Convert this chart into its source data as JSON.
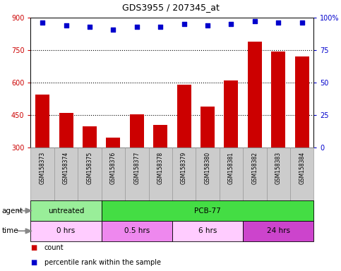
{
  "title": "GDS3955 / 207345_at",
  "samples": [
    "GSM158373",
    "GSM158374",
    "GSM158375",
    "GSM158376",
    "GSM158377",
    "GSM158378",
    "GSM158379",
    "GSM158380",
    "GSM158381",
    "GSM158382",
    "GSM158383",
    "GSM158384"
  ],
  "counts": [
    545,
    462,
    400,
    345,
    455,
    405,
    590,
    490,
    610,
    790,
    745,
    720
  ],
  "percentiles": [
    96,
    94,
    93,
    91,
    93,
    93,
    95,
    94,
    95,
    97,
    96,
    96
  ],
  "ylim_left": [
    300,
    900
  ],
  "ylim_right": [
    0,
    100
  ],
  "yticks_left": [
    300,
    450,
    600,
    750,
    900
  ],
  "yticks_right": [
    0,
    25,
    50,
    75,
    100
  ],
  "bar_color": "#cc0000",
  "dot_color": "#0000cc",
  "grid_color": "#000000",
  "agent_groups": [
    {
      "label": "untreated",
      "start": 0,
      "end": 3,
      "color": "#99ee99"
    },
    {
      "label": "PCB-77",
      "start": 3,
      "end": 12,
      "color": "#44dd44"
    }
  ],
  "time_groups": [
    {
      "label": "0 hrs",
      "start": 0,
      "end": 3,
      "color": "#ffccff"
    },
    {
      "label": "0.5 hrs",
      "start": 3,
      "end": 6,
      "color": "#ee88ee"
    },
    {
      "label": "6 hrs",
      "start": 6,
      "end": 9,
      "color": "#ffccff"
    },
    {
      "label": "24 hrs",
      "start": 9,
      "end": 12,
      "color": "#cc44cc"
    }
  ],
  "legend_items": [
    {
      "label": "count",
      "color": "#cc0000"
    },
    {
      "label": "percentile rank within the sample",
      "color": "#0000cc"
    }
  ],
  "bg_color": "#ffffff",
  "tick_label_bg": "#cccccc",
  "figsize": [
    4.83,
    3.84
  ],
  "dpi": 100
}
